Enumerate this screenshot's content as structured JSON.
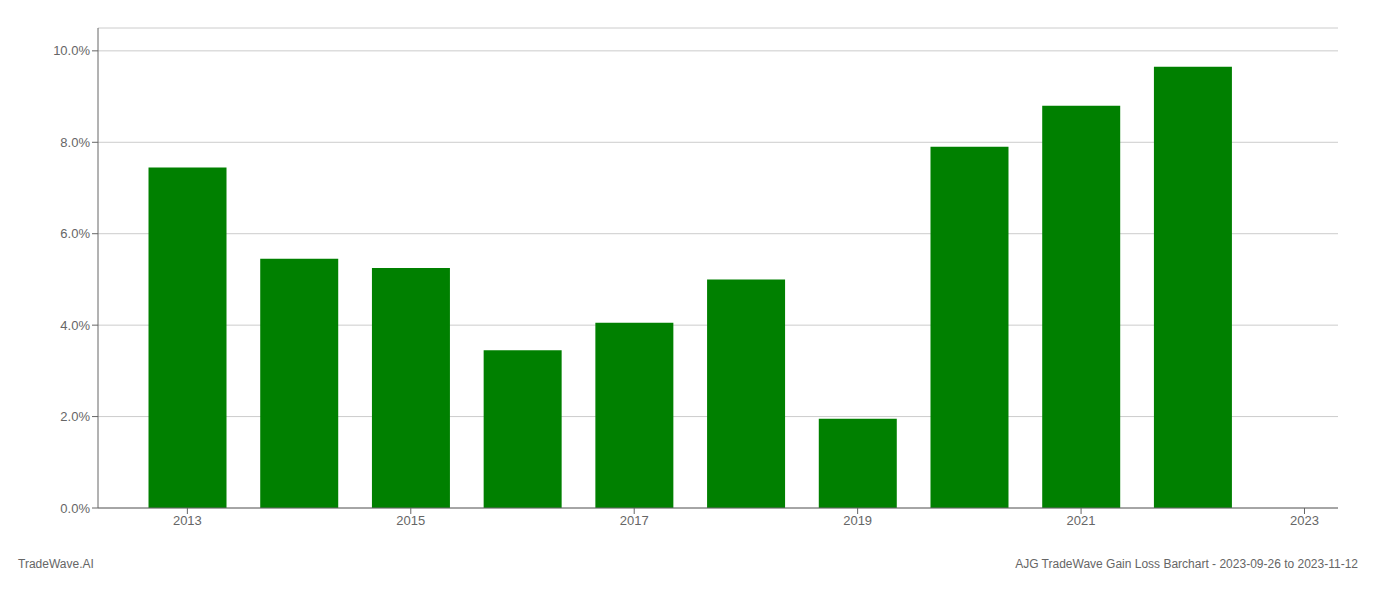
{
  "chart_data": {
    "type": "bar",
    "x": [
      2013,
      2014,
      2015,
      2016,
      2017,
      2018,
      2019,
      2020,
      2021,
      2022
    ],
    "values": [
      0.0745,
      0.0545,
      0.0525,
      0.0345,
      0.0405,
      0.05,
      0.0195,
      0.079,
      0.088,
      0.0965
    ],
    "color": "#008000",
    "xlim": [
      2012.2,
      2023.3
    ],
    "xticks": [
      2013,
      2015,
      2017,
      2019,
      2021,
      2023
    ],
    "ylim": [
      0,
      0.105
    ],
    "yticks": [
      {
        "value": 0.0,
        "label": "0.0%"
      },
      {
        "value": 0.02,
        "label": "2.0%"
      },
      {
        "value": 0.04,
        "label": "4.0%"
      },
      {
        "value": 0.06,
        "label": "6.0%"
      },
      {
        "value": 0.08,
        "label": "8.0%"
      },
      {
        "value": 0.1,
        "label": "10.0%"
      }
    ],
    "grid": true,
    "annotations": [
      "TradeWave.AI",
      "AJG TradeWave Gain Loss Barchart - 2023-09-26 to 2023-11-12"
    ]
  }
}
